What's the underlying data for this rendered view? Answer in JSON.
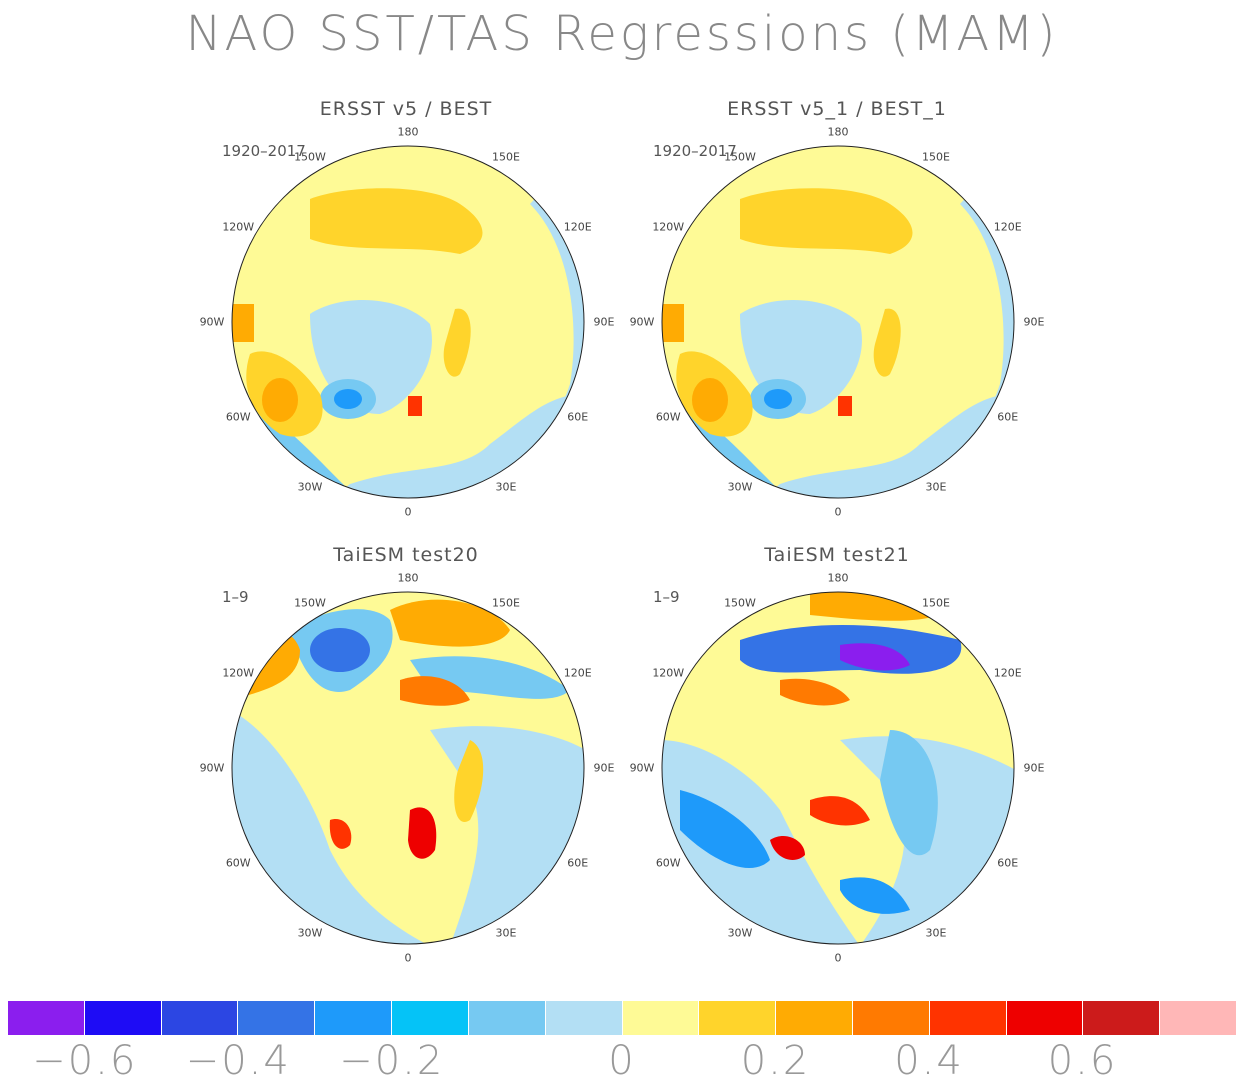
{
  "title": "NAO SST/TAS Regressions (MAM)",
  "panels": [
    {
      "title": "ERSST v5 / BEST",
      "period": "1920–2017"
    },
    {
      "title": "ERSST v5_1 / BEST_1",
      "period": "1920–2017"
    },
    {
      "title": "TaiESM test20",
      "period": "1–9"
    },
    {
      "title": "TaiESM test21",
      "period": "1–9"
    }
  ],
  "longitude_labels": [
    "180",
    "150E",
    "120E",
    "90E",
    "60E",
    "30E",
    "0",
    "30W",
    "60W",
    "90W",
    "120W",
    "150W"
  ],
  "colorbar": {
    "colors": [
      "#8b1eee",
      "#1e0cf5",
      "#2c46e3",
      "#3473e6",
      "#1e9afa",
      "#05c3f7",
      "#76c9f2",
      "#b3dff4",
      "#fefa96",
      "#ffd42b",
      "#ffab03",
      "#ff7a01",
      "#ff3300",
      "#ee0000",
      "#cc1b1b",
      "#ffb7b7"
    ],
    "labels": [
      "−0.6",
      "−0.4",
      "−0.2",
      "0",
      "0.2",
      "0.4",
      "0.6"
    ],
    "label_boundaries": [
      1,
      3,
      5,
      8,
      10,
      12,
      14
    ]
  }
}
